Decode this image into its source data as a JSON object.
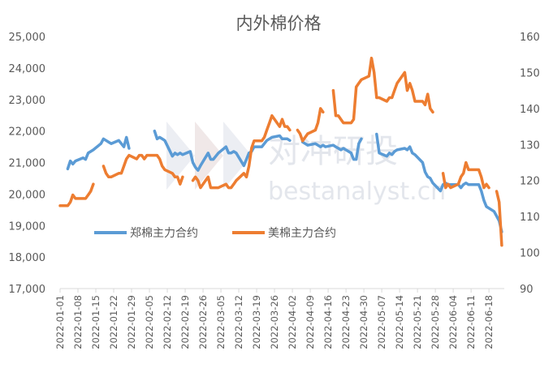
{
  "chart_data": {
    "type": "line",
    "title": "内外棉价格",
    "watermark": [
      "对冲研投",
      "bestanalyst.cn"
    ],
    "x_tick_labels": [
      "2022-01-01",
      "2022-01-08",
      "2022-01-15",
      "2022-01-22",
      "2022-01-29",
      "2022-02-05",
      "2022-02-12",
      "2022-02-19",
      "2022-02-26",
      "2022-03-05",
      "2022-03-12",
      "2022-03-19",
      "2022-03-26",
      "2022-04-02",
      "2022-04-09",
      "2022-04-16",
      "2022-04-23",
      "2022-04-30",
      "2022-05-07",
      "2022-05-14",
      "2022-05-21",
      "2022-05-28",
      "2022-06-04",
      "2022-06-11",
      "2022-06-18"
    ],
    "x_range": [
      "2022-01-01",
      "2022-06-24"
    ],
    "y_left": {
      "range": [
        17000,
        25000
      ],
      "ticks": [
        "17,000",
        "18,000",
        "19,000",
        "20,000",
        "21,000",
        "22,000",
        "23,000",
        "24,000",
        "25,000"
      ]
    },
    "y_right": {
      "range": [
        90,
        160
      ],
      "ticks": [
        "90",
        "100",
        "110",
        "120",
        "130",
        "140",
        "150",
        "160"
      ]
    },
    "grid": false,
    "legend_position": "inside-lower-left",
    "colors": {
      "zhengmian": "#5b9bd5",
      "meimian": "#ed7d31",
      "axis": "#d9d9d9",
      "text": "#595959"
    },
    "series": [
      {
        "name": "郑棉主力合约",
        "axis": "left",
        "points": [
          [
            "2022-01-01",
            20700
          ],
          [
            "2022-01-03",
            null
          ],
          [
            "2022-01-04",
            20800
          ],
          [
            "2022-01-05",
            21050
          ],
          [
            "2022-01-06",
            20950
          ],
          [
            "2022-01-07",
            21050
          ],
          [
            "2022-01-10",
            21150
          ],
          [
            "2022-01-11",
            21100
          ],
          [
            "2022-01-12",
            21300
          ],
          [
            "2022-01-13",
            21350
          ],
          [
            "2022-01-14",
            21400
          ],
          [
            "2022-01-17",
            21600
          ],
          [
            "2022-01-18",
            21750
          ],
          [
            "2022-01-19",
            21700
          ],
          [
            "2022-01-20",
            21650
          ],
          [
            "2022-01-21",
            21600
          ],
          [
            "2022-01-24",
            21700
          ],
          [
            "2022-01-25",
            21600
          ],
          [
            "2022-01-26",
            21500
          ],
          [
            "2022-01-27",
            21800
          ],
          [
            "2022-01-28",
            21450
          ],
          [
            "2022-01-30",
            null
          ],
          [
            "2022-02-07",
            22000
          ],
          [
            "2022-02-08",
            21750
          ],
          [
            "2022-02-09",
            21800
          ],
          [
            "2022-02-10",
            21750
          ],
          [
            "2022-02-11",
            21700
          ],
          [
            "2022-02-14",
            21200
          ],
          [
            "2022-02-15",
            21300
          ],
          [
            "2022-02-16",
            21250
          ],
          [
            "2022-02-17",
            21300
          ],
          [
            "2022-02-18",
            21250
          ],
          [
            "2022-02-21",
            21350
          ],
          [
            "2022-02-22",
            21000
          ],
          [
            "2022-02-23",
            20850
          ],
          [
            "2022-02-24",
            20750
          ],
          [
            "2022-02-25",
            20900
          ],
          [
            "2022-02-28",
            21300
          ],
          [
            "2022-03-01",
            21100
          ],
          [
            "2022-03-02",
            21100
          ],
          [
            "2022-03-03",
            21200
          ],
          [
            "2022-03-04",
            21300
          ],
          [
            "2022-03-07",
            21500
          ],
          [
            "2022-03-08",
            21300
          ],
          [
            "2022-03-09",
            21300
          ],
          [
            "2022-03-10",
            21350
          ],
          [
            "2022-03-11",
            21300
          ],
          [
            "2022-03-14",
            20900
          ],
          [
            "2022-03-15",
            21100
          ],
          [
            "2022-03-16",
            21300
          ],
          [
            "2022-03-17",
            21350
          ],
          [
            "2022-03-18",
            21500
          ],
          [
            "2022-03-21",
            21500
          ],
          [
            "2022-03-22",
            21600
          ],
          [
            "2022-03-23",
            21700
          ],
          [
            "2022-03-24",
            21750
          ],
          [
            "2022-03-25",
            21800
          ],
          [
            "2022-03-28",
            21850
          ],
          [
            "2022-03-29",
            21750
          ],
          [
            "2022-03-30",
            21750
          ],
          [
            "2022-03-31",
            21750
          ],
          [
            "2022-04-01",
            21700
          ],
          [
            "2022-04-02",
            null
          ],
          [
            "2022-04-06",
            21650
          ],
          [
            "2022-04-07",
            21600
          ],
          [
            "2022-04-08",
            21550
          ],
          [
            "2022-04-11",
            21600
          ],
          [
            "2022-04-12",
            21550
          ],
          [
            "2022-04-13",
            21500
          ],
          [
            "2022-04-14",
            21550
          ],
          [
            "2022-04-15",
            21500
          ],
          [
            "2022-04-18",
            21550
          ],
          [
            "2022-04-19",
            21500
          ],
          [
            "2022-04-20",
            21450
          ],
          [
            "2022-04-21",
            21400
          ],
          [
            "2022-04-22",
            21450
          ],
          [
            "2022-04-25",
            21300
          ],
          [
            "2022-04-26",
            21100
          ],
          [
            "2022-04-27",
            21100
          ],
          [
            "2022-04-28",
            21600
          ],
          [
            "2022-04-29",
            21750
          ],
          [
            "2022-04-30",
            null
          ],
          [
            "2022-05-05",
            21900
          ],
          [
            "2022-05-06",
            21300
          ],
          [
            "2022-05-09",
            21200
          ],
          [
            "2022-05-10",
            21300
          ],
          [
            "2022-05-11",
            21250
          ],
          [
            "2022-05-12",
            21350
          ],
          [
            "2022-05-13",
            21400
          ],
          [
            "2022-05-16",
            21450
          ],
          [
            "2022-05-17",
            21400
          ],
          [
            "2022-05-18",
            21500
          ],
          [
            "2022-05-19",
            21300
          ],
          [
            "2022-05-20",
            21250
          ],
          [
            "2022-05-23",
            21000
          ],
          [
            "2022-05-24",
            20700
          ],
          [
            "2022-05-25",
            20550
          ],
          [
            "2022-05-26",
            20500
          ],
          [
            "2022-05-27",
            20350
          ],
          [
            "2022-05-30",
            20100
          ],
          [
            "2022-05-31",
            20300
          ],
          [
            "2022-06-01",
            20350
          ],
          [
            "2022-06-02",
            20300
          ],
          [
            "2022-06-06",
            20300
          ],
          [
            "2022-06-07",
            20200
          ],
          [
            "2022-06-08",
            20300
          ],
          [
            "2022-06-09",
            20350
          ],
          [
            "2022-06-10",
            20300
          ],
          [
            "2022-06-13",
            20300
          ],
          [
            "2022-06-14",
            20300
          ],
          [
            "2022-06-15",
            20100
          ],
          [
            "2022-06-16",
            19800
          ],
          [
            "2022-06-17",
            19600
          ],
          [
            "2022-06-20",
            19450
          ],
          [
            "2022-06-21",
            19300
          ],
          [
            "2022-06-22",
            19150
          ],
          [
            "2022-06-23",
            18800
          ]
        ]
      },
      {
        "name": "美棉主力合约",
        "axis": "right",
        "points": [
          [
            "2022-01-01",
            113
          ],
          [
            "2022-01-03",
            113
          ],
          [
            "2022-01-04",
            113
          ],
          [
            "2022-01-05",
            114
          ],
          [
            "2022-01-06",
            116
          ],
          [
            "2022-01-07",
            115
          ],
          [
            "2022-01-10",
            115
          ],
          [
            "2022-01-11",
            115
          ],
          [
            "2022-01-12",
            116
          ],
          [
            "2022-01-13",
            117
          ],
          [
            "2022-01-14",
            119
          ],
          [
            "2022-01-15",
            null
          ],
          [
            "2022-01-18",
            124
          ],
          [
            "2022-01-19",
            122
          ],
          [
            "2022-01-20",
            121
          ],
          [
            "2022-01-21",
            121
          ],
          [
            "2022-01-24",
            122
          ],
          [
            "2022-01-25",
            122
          ],
          [
            "2022-01-26",
            124
          ],
          [
            "2022-01-27",
            126
          ],
          [
            "2022-01-28",
            127
          ],
          [
            "2022-01-31",
            126
          ],
          [
            "2022-02-01",
            127
          ],
          [
            "2022-02-02",
            127
          ],
          [
            "2022-02-03",
            126
          ],
          [
            "2022-02-04",
            127
          ],
          [
            "2022-02-07",
            127
          ],
          [
            "2022-02-08",
            127
          ],
          [
            "2022-02-09",
            126
          ],
          [
            "2022-02-10",
            124
          ],
          [
            "2022-02-11",
            123
          ],
          [
            "2022-02-14",
            122
          ],
          [
            "2022-02-15",
            121
          ],
          [
            "2022-02-16",
            121
          ],
          [
            "2022-02-17",
            119
          ],
          [
            "2022-02-18",
            121
          ],
          [
            "2022-02-19",
            null
          ],
          [
            "2022-02-22",
            120
          ],
          [
            "2022-02-23",
            121
          ],
          [
            "2022-02-24",
            120
          ],
          [
            "2022-02-25",
            118
          ],
          [
            "2022-02-28",
            121
          ],
          [
            "2022-03-01",
            118
          ],
          [
            "2022-03-02",
            118
          ],
          [
            "2022-03-03",
            118
          ],
          [
            "2022-03-04",
            118
          ],
          [
            "2022-03-07",
            119
          ],
          [
            "2022-03-08",
            118
          ],
          [
            "2022-03-09",
            118
          ],
          [
            "2022-03-10",
            119
          ],
          [
            "2022-03-11",
            120
          ],
          [
            "2022-03-14",
            122
          ],
          [
            "2022-03-15",
            121
          ],
          [
            "2022-03-16",
            124
          ],
          [
            "2022-03-17",
            129
          ],
          [
            "2022-03-18",
            131
          ],
          [
            "2022-03-21",
            131
          ],
          [
            "2022-03-22",
            132
          ],
          [
            "2022-03-23",
            134
          ],
          [
            "2022-03-24",
            136
          ],
          [
            "2022-03-25",
            138
          ],
          [
            "2022-03-28",
            135
          ],
          [
            "2022-03-29",
            137
          ],
          [
            "2022-03-30",
            135
          ],
          [
            "2022-03-31",
            135
          ],
          [
            "2022-04-01",
            134
          ],
          [
            "2022-04-02",
            null
          ],
          [
            "2022-04-04",
            134
          ],
          [
            "2022-04-05",
            133
          ],
          [
            "2022-04-06",
            131
          ],
          [
            "2022-04-07",
            132
          ],
          [
            "2022-04-08",
            133
          ],
          [
            "2022-04-11",
            134
          ],
          [
            "2022-04-12",
            136
          ],
          [
            "2022-04-13",
            140
          ],
          [
            "2022-04-14",
            139
          ],
          [
            "2022-04-15",
            null
          ],
          [
            "2022-04-18",
            145
          ],
          [
            "2022-04-19",
            138
          ],
          [
            "2022-04-20",
            138
          ],
          [
            "2022-04-21",
            137
          ],
          [
            "2022-04-22",
            136
          ],
          [
            "2022-04-25",
            136
          ],
          [
            "2022-04-26",
            137
          ],
          [
            "2022-04-27",
            146
          ],
          [
            "2022-04-28",
            147
          ],
          [
            "2022-04-29",
            148
          ],
          [
            "2022-05-02",
            149
          ],
          [
            "2022-05-03",
            154
          ],
          [
            "2022-05-04",
            150
          ],
          [
            "2022-05-05",
            143
          ],
          [
            "2022-05-06",
            143
          ],
          [
            "2022-05-09",
            142
          ],
          [
            "2022-05-10",
            143
          ],
          [
            "2022-05-11",
            143
          ],
          [
            "2022-05-12",
            145
          ],
          [
            "2022-05-13",
            147
          ],
          [
            "2022-05-16",
            150
          ],
          [
            "2022-05-17",
            145
          ],
          [
            "2022-05-18",
            147
          ],
          [
            "2022-05-19",
            145
          ],
          [
            "2022-05-20",
            142
          ],
          [
            "2022-05-23",
            142
          ],
          [
            "2022-05-24",
            141
          ],
          [
            "2022-05-25",
            144
          ],
          [
            "2022-05-26",
            140
          ],
          [
            "2022-05-27",
            139
          ],
          [
            "2022-05-28",
            null
          ],
          [
            "2022-05-31",
            122
          ],
          [
            "2022-06-01",
            118
          ],
          [
            "2022-06-02",
            119
          ],
          [
            "2022-06-03",
            118
          ],
          [
            "2022-06-06",
            119
          ],
          [
            "2022-06-07",
            121
          ],
          [
            "2022-06-08",
            122
          ],
          [
            "2022-06-09",
            125
          ],
          [
            "2022-06-10",
            123
          ],
          [
            "2022-06-13",
            123
          ],
          [
            "2022-06-14",
            123
          ],
          [
            "2022-06-15",
            121
          ],
          [
            "2022-06-16",
            118
          ],
          [
            "2022-06-17",
            119
          ],
          [
            "2022-06-18",
            118
          ],
          [
            "2022-06-19",
            null
          ],
          [
            "2022-06-21",
            117
          ],
          [
            "2022-06-22",
            114
          ],
          [
            "2022-06-23",
            102
          ]
        ]
      }
    ]
  }
}
